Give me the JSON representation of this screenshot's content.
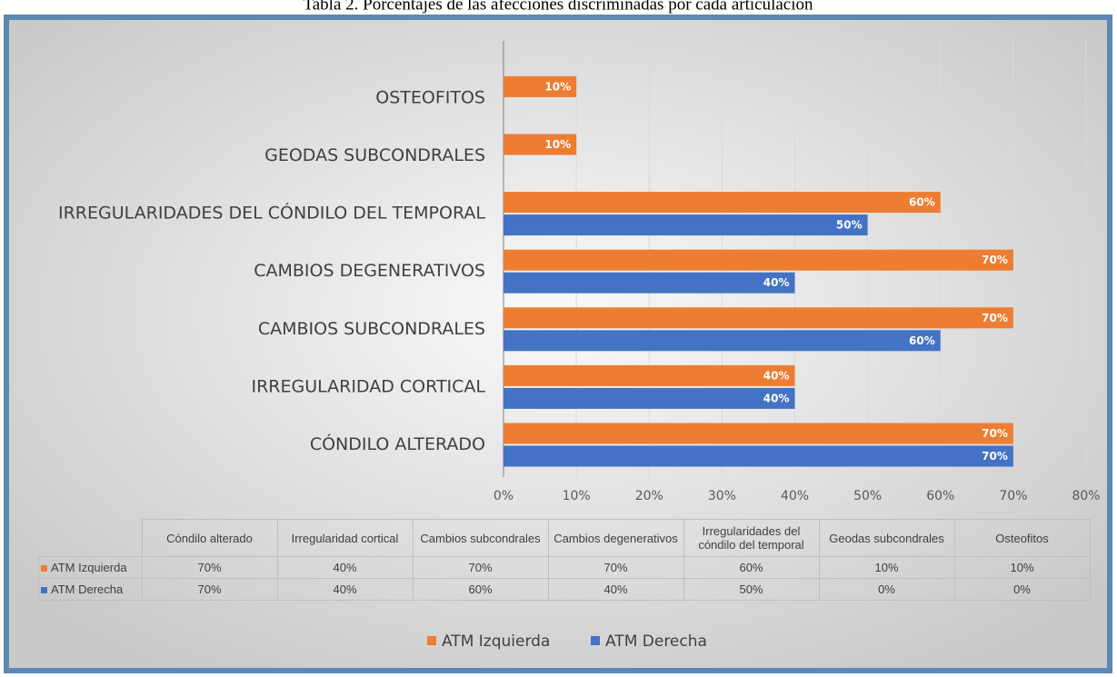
{
  "chart_data": {
    "type": "hbar",
    "title": "Tabla 2. Porcentajes de las afecciones discriminadas por cada articulación",
    "categories": [
      "CÓNDILO ALTERADO",
      "IRREGULARIDAD CORTICAL",
      "CAMBIOS SUBCONDRALES",
      "CAMBIOS DEGENERATIVOS",
      "IRREGULARIDADES DEL CÓNDILO DEL TEMPORAL",
      "GEODAS SUBCONDRALES",
      "OSTEOFITOS"
    ],
    "table_columns": [
      "Cóndilo alterado",
      "Irregularidad cortical",
      "Cambios subcondrales",
      "Cambios degenerativos",
      "Irregularidades del cóndilo del temporal",
      "Geodas subcondrales",
      "Osteofitos"
    ],
    "series": [
      {
        "name": "ATM Izquierda",
        "color": "#ed7d31",
        "values": [
          70,
          40,
          70,
          70,
          60,
          10,
          10
        ],
        "value_labels": [
          "70%",
          "40%",
          "70%",
          "70%",
          "60%",
          "10%",
          "10%"
        ]
      },
      {
        "name": "ATM Derecha",
        "color": "#4472c4",
        "values": [
          70,
          40,
          60,
          40,
          50,
          0,
          0
        ],
        "value_labels": [
          "70%",
          "40%",
          "60%",
          "40%",
          "50%",
          "0%",
          "0%"
        ]
      }
    ],
    "xlim": [
      0,
      80
    ],
    "xticks": [
      {
        "value": 0,
        "label": "0%"
      },
      {
        "value": 10,
        "label": "10%"
      },
      {
        "value": 20,
        "label": "20%"
      },
      {
        "value": 30,
        "label": "30%"
      },
      {
        "value": 40,
        "label": "40%"
      },
      {
        "value": 50,
        "label": "50%"
      },
      {
        "value": 60,
        "label": "60%"
      },
      {
        "value": 70,
        "label": "70%"
      },
      {
        "value": 80,
        "label": "80%"
      }
    ],
    "grid": true,
    "legend": "bottom"
  }
}
